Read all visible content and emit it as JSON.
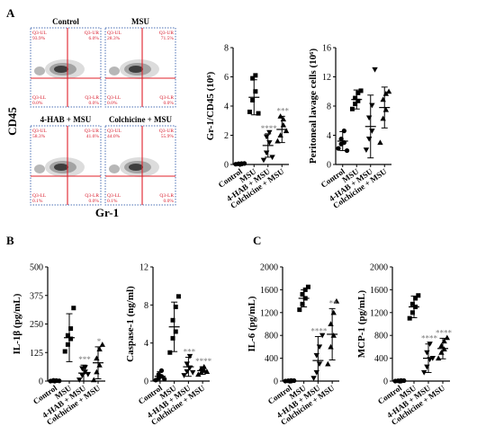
{
  "panels": {
    "a": "A",
    "b": "B",
    "c": "C"
  },
  "flow": {
    "y_label": "CD45",
    "x_label": "Gr-1",
    "plots": [
      {
        "title": "Control",
        "q_ul": "Q3-UL",
        "v_ul": "93.9%",
        "q_ur": "Q3-UR",
        "v_ur": "6.0%",
        "q_ll": "Q3-LL",
        "v_ll": "0.0%",
        "q_lr": "Q3-LR",
        "v_lr": "0.0%"
      },
      {
        "title": "MSU",
        "q_ul": "Q3-UL",
        "v_ul": "28.3%",
        "q_ur": "Q3-UR",
        "v_ur": "71.5%",
        "q_ll": "Q3-LL",
        "v_ll": "0.0%",
        "q_lr": "Q3-LR",
        "v_lr": "0.0%"
      },
      {
        "title": "4-HAB + MSU",
        "q_ul": "Q3-UL",
        "v_ul": "58.3%",
        "q_ur": "Q3-UR",
        "v_ur": "41.6%",
        "q_ll": "Q3-LL",
        "v_ll": "0.1%",
        "q_lr": "Q3-LR",
        "v_lr": "0.0%"
      },
      {
        "title": "Colchicine + MSU",
        "q_ul": "Q3-UL",
        "v_ul": "44.0%",
        "q_ur": "Q3-UR",
        "v_ur": "55.9%",
        "q_ll": "Q3-LL",
        "v_ll": "0.1%",
        "q_lr": "Q3-LR",
        "v_lr": "0.0%"
      }
    ]
  },
  "colors": {
    "axis": "#000000",
    "quad": "#e0202a",
    "gate_text": "#d81b2b",
    "frame": "#4a6fb5",
    "sig": "#777777",
    "density": "#333333"
  },
  "chart_data": [
    {
      "id": "gr1cd45",
      "type": "scatter",
      "ylabel": "Gr-1/CD45 (10⁶)",
      "ylim": [
        0,
        8
      ],
      "yticks": [
        "0",
        "2",
        "4",
        "6",
        "8"
      ],
      "categories": [
        "Control",
        "MSU",
        "4-HAB + MSU",
        "Colchicine + MSU"
      ],
      "markers": [
        "circle",
        "square",
        "triangle-down",
        "triangle-up"
      ],
      "mean": [
        0.05,
        4.6,
        1.3,
        2.4
      ],
      "sd": [
        0.05,
        1.2,
        0.8,
        0.9
      ],
      "points": [
        [
          0.02,
          0.04,
          0.06,
          0.05,
          0.03,
          0.07
        ],
        [
          3.6,
          4.4,
          5.0,
          5.9,
          6.1,
          3.5
        ],
        [
          0.3,
          0.8,
          1.5,
          1.9,
          2.2,
          0.5
        ],
        [
          1.6,
          2.0,
          2.7,
          3.3,
          3.1,
          2.3
        ]
      ],
      "sig": [
        "",
        "",
        "****",
        "***"
      ]
    },
    {
      "id": "plc",
      "type": "scatter",
      "ylabel": "Peritoneal lavage cells (10⁶)",
      "ylim": [
        0,
        16
      ],
      "yticks": [
        "0",
        "4",
        "8",
        "12",
        "16"
      ],
      "categories": [
        "Control",
        "MSU",
        "4-HAB + MSU",
        "Colchicine + MSU"
      ],
      "markers": [
        "circle",
        "square",
        "triangle-down",
        "triangle-up"
      ],
      "mean": [
        3.2,
        8.9,
        5.2,
        7.8
      ],
      "sd": [
        1.3,
        1.3,
        4.3,
        2.8
      ],
      "points": [
        [
          2.2,
          2.8,
          3.0,
          3.5,
          4.6,
          1.9
        ],
        [
          7.6,
          8.3,
          8.7,
          9.1,
          9.8,
          10.1
        ],
        [
          2.0,
          3.5,
          4.6,
          6.4,
          8.1,
          13.0
        ],
        [
          3.0,
          6.3,
          7.5,
          8.9,
          9.7,
          10.0
        ]
      ],
      "sig": [
        "",
        "",
        "",
        ""
      ]
    },
    {
      "id": "il1b",
      "type": "scatter",
      "ylabel": "IL-1β (pg/mL)",
      "ylim": [
        0,
        500
      ],
      "yticks": [
        "0",
        "125",
        "250",
        "375",
        "500"
      ],
      "categories": [
        "Control",
        "MSU",
        "4-HAB + MSU",
        "Colchicine + MSU"
      ],
      "markers": [
        "circle",
        "square",
        "triangle-down",
        "triangle-up"
      ],
      "mean": [
        2,
        190,
        35,
        80
      ],
      "sd": [
        3,
        105,
        35,
        70
      ],
      "points": [
        [
          0,
          1,
          2,
          3,
          2,
          1
        ],
        [
          130,
          160,
          185,
          200,
          230,
          320
        ],
        [
          5,
          25,
          40,
          55,
          60,
          30
        ],
        [
          5,
          40,
          70,
          100,
          140,
          160
        ]
      ],
      "sig": [
        "",
        "",
        "***",
        "*"
      ]
    },
    {
      "id": "casp1",
      "type": "scatter",
      "ylabel": "Caspase-1 (ng/ml)",
      "ylim": [
        0,
        12
      ],
      "yticks": [
        "0",
        "4",
        "8",
        "12"
      ],
      "categories": [
        "Control",
        "MSU",
        "4-HAB + MSU",
        "Colchicine + MSU"
      ],
      "markers": [
        "circle",
        "square",
        "triangle-down",
        "triangle-up"
      ],
      "mean": [
        0.5,
        5.7,
        1.5,
        1.1
      ],
      "sd": [
        0.5,
        2.6,
        1.0,
        0.4
      ],
      "points": [
        [
          0.1,
          0.3,
          0.5,
          0.7,
          1.1,
          0.2
        ],
        [
          3.0,
          4.5,
          5.2,
          6.4,
          7.8,
          8.9
        ],
        [
          0.6,
          1.0,
          1.4,
          1.8,
          2.6,
          0.9
        ],
        [
          0.7,
          0.9,
          1.1,
          1.3,
          1.5,
          1.0
        ]
      ],
      "sig": [
        "",
        "",
        "***",
        "****"
      ]
    },
    {
      "id": "il6",
      "type": "scatter",
      "ylabel": "IL-6 (pg/mL)",
      "ylim": [
        0,
        2000
      ],
      "yticks": [
        "0",
        "400",
        "800",
        "1200",
        "1600",
        "2000"
      ],
      "categories": [
        "Control",
        "MSU",
        "4-HAB + MSU",
        "Colchicine + MSU"
      ],
      "markers": [
        "circle",
        "square",
        "triangle-down",
        "triangle-up"
      ],
      "mean": [
        5,
        1450,
        360,
        820
      ],
      "sd": [
        5,
        150,
        420,
        450
      ],
      "points": [
        [
          0,
          5,
          10,
          5,
          0,
          8
        ],
        [
          1250,
          1350,
          1450,
          1520,
          1600,
          1650
        ],
        [
          50,
          150,
          300,
          450,
          600,
          800
        ],
        [
          300,
          600,
          800,
          1000,
          1200,
          1400
        ]
      ],
      "sig": [
        "",
        "",
        "****",
        "**"
      ]
    },
    {
      "id": "mcp1",
      "type": "scatter",
      "ylabel": "MCP-1 (pg/mL)",
      "ylim": [
        0,
        2000
      ],
      "yticks": [
        "0",
        "400",
        "800",
        "1200",
        "1600",
        "2000"
      ],
      "categories": [
        "Control",
        "MSU",
        "4-HAB + MSU",
        "Colchicine + MSU"
      ],
      "markers": [
        "circle",
        "square",
        "triangle-down",
        "triangle-up"
      ],
      "mean": [
        5,
        1300,
        400,
        570
      ],
      "sd": [
        5,
        190,
        250,
        180
      ],
      "points": [
        [
          0,
          5,
          10,
          5,
          0,
          8
        ],
        [
          1100,
          1200,
          1300,
          1350,
          1450,
          1500
        ],
        [
          150,
          250,
          380,
          500,
          650,
          400
        ],
        [
          400,
          500,
          560,
          620,
          700,
          760
        ]
      ],
      "sig": [
        "",
        "",
        "****",
        "****"
      ]
    }
  ]
}
